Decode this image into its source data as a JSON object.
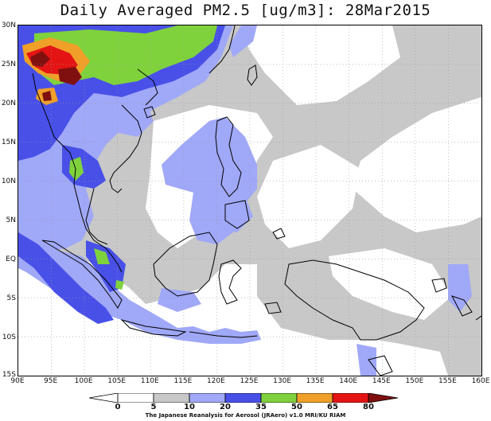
{
  "title": "Daily Averaged PM2.5 [ug/m3]: 28Mar2015",
  "map": {
    "lon_range": [
      90,
      160
    ],
    "lat_range": [
      -15,
      30
    ],
    "y_labels": [
      "30N",
      "25N",
      "20N",
      "15N",
      "10N",
      "5N",
      "EQ",
      "5S",
      "10S",
      "15S"
    ],
    "x_labels": [
      "90E",
      "95E",
      "100E",
      "105E",
      "110E",
      "115E",
      "120E",
      "125E",
      "130E",
      "135E",
      "140E",
      "145E",
      "150E",
      "155E",
      "160E"
    ],
    "colors": {
      "c5": "#ffffff",
      "c10": "#c8c8c8",
      "c20": "#a0a8f8",
      "c35": "#4850e8",
      "c50": "#7fd23c",
      "c65": "#f0a028",
      "c80": "#e41414",
      "c80plus": "#801010"
    }
  },
  "colorbar": {
    "ticks": [
      "0",
      "5",
      "10",
      "20",
      "35",
      "50",
      "65",
      "80"
    ],
    "colors": [
      "#ffffff",
      "#ffffff",
      "#c8c8c8",
      "#a0a8f8",
      "#4850e8",
      "#7fd23c",
      "#f0a028",
      "#e41414",
      "#801010"
    ]
  },
  "credit": "The Japanese Reanalysis for Aerosol (JRAero) v1.0 MRI/KU RIAM"
}
